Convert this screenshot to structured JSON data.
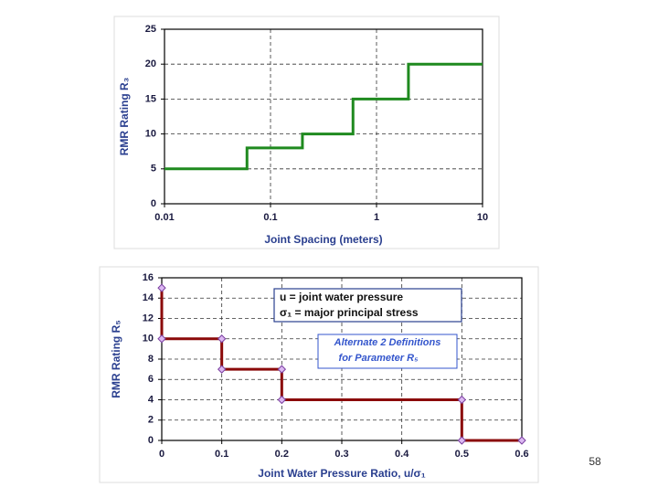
{
  "chart_data": [
    {
      "type": "line",
      "x_label": "Joint Spacing (meters)",
      "y_label": "RMR Rating R₃",
      "x": [
        0.01,
        0.06,
        0.06,
        0.2,
        0.2,
        0.6,
        0.6,
        2,
        2,
        10
      ],
      "values": [
        5,
        5,
        8,
        8,
        10,
        10,
        15,
        15,
        20,
        20
      ],
      "color": "#1f8a1f",
      "xscale": "log",
      "xlim": [
        0.01,
        10
      ],
      "xticks": [
        0.01,
        0.1,
        1,
        10
      ],
      "ylim": [
        0,
        25
      ],
      "yticks": [
        0,
        5,
        10,
        15,
        20,
        25
      ],
      "grid": true
    },
    {
      "type": "line",
      "x_label": "Joint Water Pressure Ratio, u/σ₁",
      "y_label": "RMR Rating R₅",
      "x": [
        0,
        0,
        0.1,
        0.1,
        0.2,
        0.2,
        0.5,
        0.5,
        0.6
      ],
      "values": [
        15,
        10,
        10,
        7,
        7,
        4,
        4,
        0,
        0
      ],
      "color": "#8b0a0a",
      "markers": "diamond",
      "marker_color": "#dcb8f2",
      "xlim": [
        0,
        0.6
      ],
      "xticks": [
        0,
        0.1,
        0.2,
        0.3,
        0.4,
        0.5,
        0.6
      ],
      "ylim": [
        0,
        16
      ],
      "yticks": [
        0,
        2,
        4,
        6,
        8,
        10,
        12,
        14,
        16
      ],
      "grid": true,
      "annotations": [
        "u = joint water pressure",
        "σ₁ = major principal stress",
        "Alternate 2 Definitions",
        "for Parameter R₅"
      ]
    }
  ],
  "page_number": "58"
}
